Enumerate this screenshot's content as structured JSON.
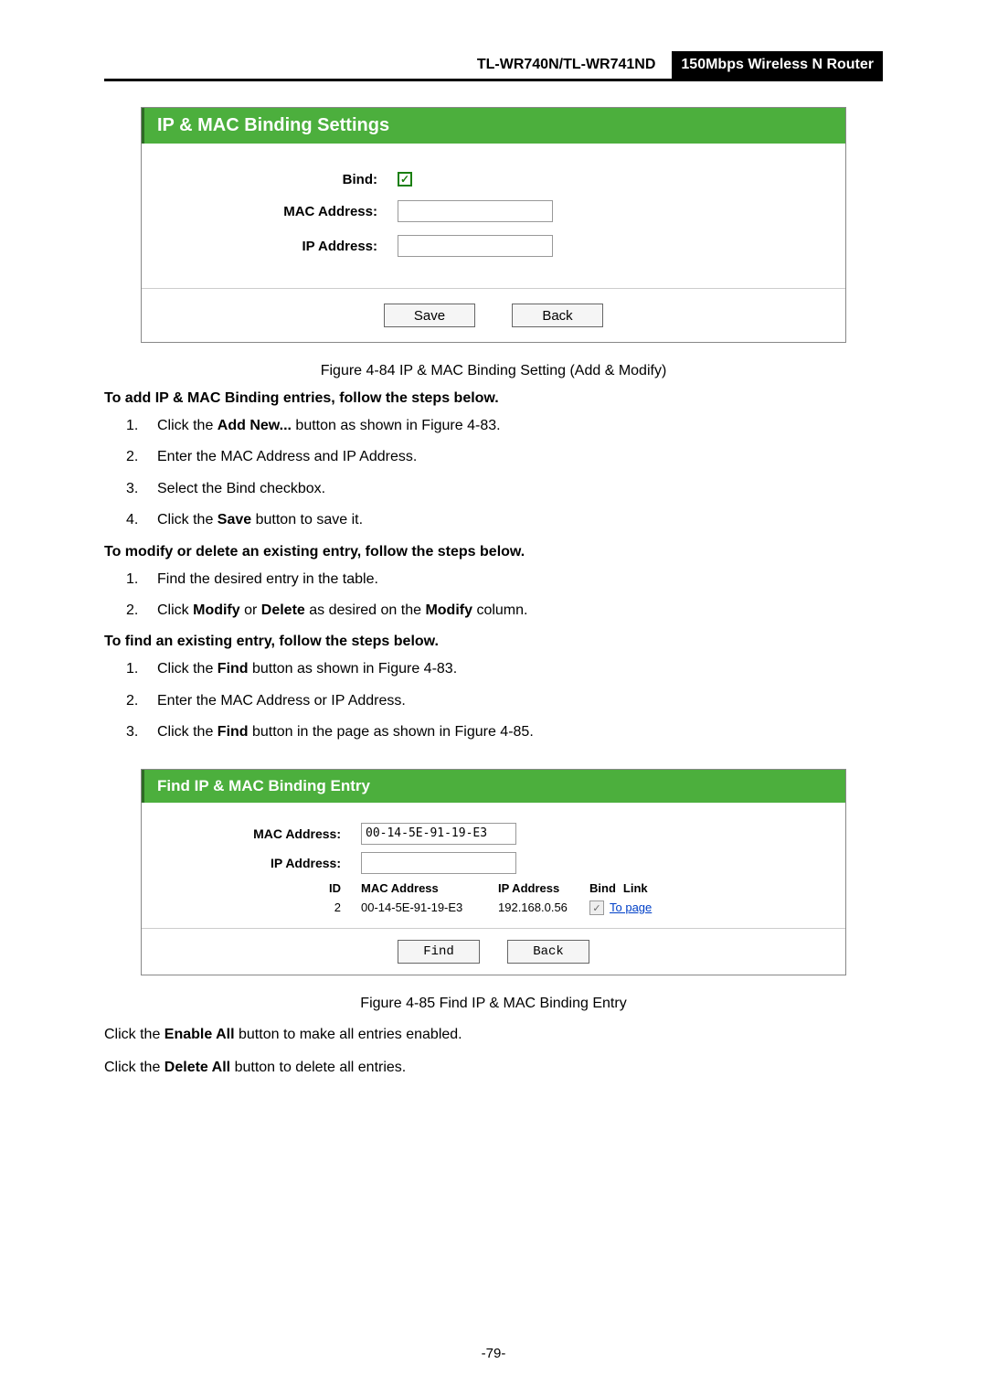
{
  "header": {
    "model": "TL-WR740N/TL-WR741ND",
    "product": "150Mbps Wireless N Router"
  },
  "panel1": {
    "title": "IP & MAC Binding Settings",
    "labels": {
      "bind": "Bind:",
      "mac": "MAC Address:",
      "ip": "IP Address:"
    },
    "bind_checked": true,
    "mac_value": "",
    "ip_value": "",
    "buttons": {
      "save": "Save",
      "back": "Back"
    },
    "header_bg": "#4caf3d"
  },
  "caption1": "Figure 4-84    IP & MAC Binding Setting (Add & Modify)",
  "section_add": {
    "heading": "To add IP & MAC Binding entries, follow the steps below.",
    "items": [
      [
        "1.",
        "Click the ",
        "Add New...",
        " button as shown in Figure 4-83."
      ],
      [
        "2.",
        "Enter the MAC Address and IP Address."
      ],
      [
        "3.",
        "Select the Bind checkbox."
      ],
      [
        "4.",
        "Click the ",
        "Save",
        " button to save it."
      ]
    ]
  },
  "section_modify": {
    "heading": "To modify or delete an existing entry, follow the steps below.",
    "items": [
      [
        "1.",
        "Find the desired entry in the table."
      ],
      [
        "2.",
        "Click ",
        "Modify",
        " or ",
        "Delete",
        " as desired on the ",
        "Modify",
        " column."
      ]
    ]
  },
  "section_find": {
    "heading": "To find an existing entry, follow the steps below.",
    "items": [
      [
        "1.",
        "Click the ",
        "Find",
        " button as shown in Figure 4-83."
      ],
      [
        "2.",
        "Enter the MAC Address or IP Address."
      ],
      [
        "3.",
        "Click the ",
        "Find",
        " button in the page as shown in Figure 4-85."
      ]
    ]
  },
  "panel2": {
    "title": "Find IP & MAC Binding Entry",
    "labels": {
      "mac": "MAC Address:",
      "ip": "IP Address:",
      "id": "ID",
      "macc": "MAC Address",
      "ipc": "IP Address",
      "bind": "Bind",
      "link": "Link"
    },
    "mac_value": "00-14-5E-91-19-E3",
    "ip_value": "",
    "row": {
      "id": "2",
      "mac": "00-14-5E-91-19-E3",
      "ip": "192.168.0.56",
      "bind_checked": true,
      "link_text": "To page"
    },
    "buttons": {
      "find": "Find",
      "back": "Back"
    }
  },
  "caption2": "Figure 4-85    Find IP & MAC Binding Entry",
  "para_enable": [
    "Click the ",
    "Enable All",
    " button to make all entries enabled."
  ],
  "para_delete": [
    "Click the ",
    "Delete All",
    " button to delete all entries."
  ],
  "page_number": "-79-"
}
